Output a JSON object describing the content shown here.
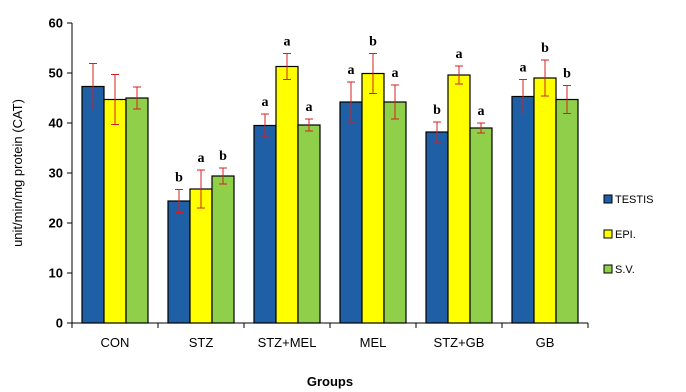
{
  "chart_data": {
    "type": "bar",
    "categories": [
      "CON",
      "STZ",
      "STZ+MEL",
      "MEL",
      "STZ+GB",
      "GB"
    ],
    "series": [
      {
        "name": "TESTIS",
        "color": "#1f5fa6",
        "values": [
          47.3,
          24.4,
          39.5,
          44.2,
          38.2,
          45.3
        ],
        "errors": [
          4.6,
          2.3,
          2.3,
          4.0,
          2.0,
          3.4
        ],
        "sig": [
          "",
          "b",
          "a",
          "a",
          "b",
          "a"
        ]
      },
      {
        "name": "EPI.",
        "color": "#ffff00",
        "values": [
          44.7,
          26.8,
          51.3,
          49.9,
          49.6,
          49.0
        ],
        "errors": [
          5.0,
          3.8,
          2.6,
          4.0,
          1.8,
          3.6
        ],
        "sig": [
          "",
          "a",
          "a",
          "b",
          "a",
          "b"
        ]
      },
      {
        "name": "S.V.",
        "color": "#8fcf4a",
        "values": [
          45.0,
          29.4,
          39.6,
          44.2,
          39.0,
          44.7
        ],
        "errors": [
          2.2,
          1.6,
          1.2,
          3.4,
          1.0,
          2.8
        ],
        "sig": [
          "",
          "b",
          "a",
          "a",
          "a",
          "b"
        ]
      }
    ],
    "xlabel": "Groups",
    "ylabel": "unit/min/mg protein (CAT)",
    "ylim": [
      0,
      60
    ],
    "yticks": [
      0,
      10,
      20,
      30,
      40,
      50,
      60
    ],
    "grid": false,
    "legend_position": "right",
    "error_bar_color": "#d62020"
  }
}
